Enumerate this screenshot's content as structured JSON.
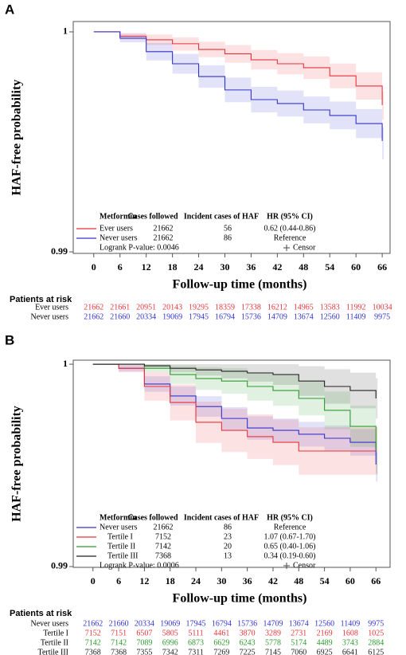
{
  "chart_data": [
    {
      "type": "line",
      "step": true,
      "panel": "A",
      "ylabel": "HAF-free probability",
      "xlabel": "Follow-up time (months)",
      "xlim": [
        -4.7,
        67.8
      ],
      "ylim": [
        0.98993,
        1.00047
      ],
      "xticks": [
        0,
        6,
        12,
        18,
        24,
        30,
        36,
        42,
        48,
        54,
        60,
        66
      ],
      "yticks": [
        0.99,
        1
      ],
      "x": [
        0,
        6,
        12,
        18,
        24,
        30,
        36,
        42,
        48,
        54,
        60,
        66
      ],
      "legend_header": [
        "Metformin",
        "Cases followed",
        "Incident cases of HAF",
        "HR (95% CI)"
      ],
      "logrank": "Logrank P-value: 0.0046",
      "censor_label": "Censor",
      "at_risk_title": "Patients at risk",
      "series": [
        {
          "name": "Ever users",
          "color": "#e8333a",
          "cases_followed": 21662,
          "incident_cases": 56,
          "hr": "0.62 (0.44-0.86)",
          "values": [
            1,
            0.9998,
            0.99964,
            0.99946,
            0.9992,
            0.999,
            0.99873,
            0.99855,
            0.99837,
            0.998,
            0.99754,
            0.99667
          ],
          "ci_upper": [
            1,
            0.99995,
            0.99988,
            0.99975,
            0.99955,
            0.9994,
            0.99917,
            0.99903,
            0.99888,
            0.99856,
            0.99816,
            0.99728
          ],
          "ci_lower": [
            1,
            0.99965,
            0.9994,
            0.99915,
            0.99885,
            0.9986,
            0.99829,
            0.99807,
            0.99786,
            0.99744,
            0.99692,
            0.99601
          ],
          "at_risk": [
            21662,
            21661,
            20951,
            20143,
            19295,
            18359,
            17338,
            16212,
            14965,
            13583,
            11992,
            10034
          ]
        },
        {
          "name": "Never users",
          "color": "#3333cc",
          "cases_followed": 21662,
          "incident_cases": 86,
          "hr": "Reference",
          "values": [
            1,
            0.99971,
            0.9991,
            0.99855,
            0.99797,
            0.99736,
            0.99692,
            0.99674,
            0.99645,
            0.9962,
            0.99583,
            0.99504
          ],
          "ci_upper": [
            1,
            0.9999,
            0.9995,
            0.999,
            0.99848,
            0.99792,
            0.9975,
            0.99733,
            0.99706,
            0.99683,
            0.99649,
            0.99565
          ],
          "ci_lower": [
            1,
            0.99952,
            0.9987,
            0.9981,
            0.99746,
            0.9968,
            0.99634,
            0.99615,
            0.99584,
            0.99557,
            0.99517,
            0.9942
          ],
          "at_risk": [
            21662,
            21660,
            20334,
            19069,
            17945,
            16794,
            15736,
            14709,
            13674,
            12560,
            11409,
            9975
          ]
        }
      ]
    },
    {
      "type": "line",
      "step": true,
      "panel": "B",
      "ylabel": "HAF-free probability",
      "xlabel": "Follow-up time (months)",
      "xlim": [
        -4.6,
        69.3
      ],
      "ylim": [
        0.98996,
        1.0002
      ],
      "xticks": [
        0,
        6,
        12,
        18,
        24,
        30,
        36,
        42,
        48,
        54,
        60,
        66
      ],
      "yticks": [
        0.99,
        1
      ],
      "x": [
        0,
        6,
        12,
        18,
        24,
        30,
        36,
        42,
        48,
        54,
        60,
        66
      ],
      "legend_header": [
        "Metformin",
        "Cases followed",
        "Incident cases of HAF",
        "HR (95% CI)"
      ],
      "logrank": "Logrank P-value: 0.0006",
      "censor_label": "Censor",
      "at_risk_title": "Patients at risk",
      "series": [
        {
          "name": "Never users",
          "color": "#3333cc",
          "cases_followed": 21662,
          "incident_cases": 86,
          "hr": "Reference",
          "values": [
            1,
            0.9998,
            0.99902,
            0.99843,
            0.99791,
            0.99732,
            0.99685,
            0.99673,
            0.99654,
            0.99634,
            0.99614,
            0.99504
          ],
          "ci_upper": [
            1,
            0.99995,
            0.9994,
            0.9989,
            0.99842,
            0.99788,
            0.99743,
            0.99732,
            0.99715,
            0.99697,
            0.9968,
            0.99565
          ],
          "ci_lower": [
            1,
            0.99965,
            0.99864,
            0.99796,
            0.9974,
            0.99676,
            0.99627,
            0.99614,
            0.99593,
            0.99571,
            0.99548,
            0.9942
          ],
          "at_risk": [
            21662,
            21660,
            20334,
            19069,
            17945,
            16794,
            15736,
            14709,
            13674,
            12560,
            11409,
            9975
          ]
        },
        {
          "name": "Tertile I",
          "color": "#e8333a",
          "cases_followed": 7152,
          "incident_cases": 23,
          "hr": "1.07 (0.67-1.70)",
          "values": [
            1,
            0.9998,
            0.9989,
            0.99811,
            0.99713,
            0.99673,
            0.99642,
            0.99614,
            0.99571,
            0.99571,
            0.99571,
            0.99571
          ],
          "ci_upper": [
            1,
            1,
            0.9996,
            0.999,
            0.99815,
            0.9978,
            0.99752,
            0.99726,
            0.99688,
            0.99688,
            0.99688,
            0.99688
          ],
          "ci_lower": [
            1,
            0.9996,
            0.9982,
            0.99722,
            0.99611,
            0.99566,
            0.99532,
            0.99502,
            0.99454,
            0.99454,
            0.99454,
            0.99454
          ],
          "at_risk": [
            7152,
            7151,
            6507,
            5805,
            5111,
            4461,
            3870,
            3289,
            2731,
            2169,
            1608,
            1025
          ]
        },
        {
          "name": "Tertile II",
          "color": "#2e9a2e",
          "cases_followed": 7142,
          "incident_cases": 20,
          "hr": "0.65 (0.40-1.06)",
          "values": [
            1,
            1,
            0.9998,
            0.99949,
            0.99929,
            0.99917,
            0.9989,
            0.9987,
            0.99831,
            0.99772,
            0.99693,
            0.99575
          ],
          "ci_upper": [
            1,
            1,
            1,
            0.99995,
            0.99985,
            0.9998,
            0.9996,
            0.99945,
            0.99915,
            0.99865,
            0.99795,
            0.9969
          ],
          "ci_lower": [
            1,
            1,
            0.9996,
            0.99903,
            0.99873,
            0.99854,
            0.9982,
            0.99795,
            0.99747,
            0.99679,
            0.99591,
            0.9946
          ],
          "at_risk": [
            7142,
            7142,
            7089,
            6996,
            6873,
            6629,
            6243,
            5778,
            5174,
            4489,
            3743,
            2884
          ]
        },
        {
          "name": "Tertile III",
          "color": "#222222",
          "cases_followed": 7368,
          "incident_cases": 13,
          "hr": "0.34 (0.19-0.60)",
          "values": [
            1,
            1,
            0.99992,
            0.9998,
            0.99972,
            0.99965,
            0.99957,
            0.99949,
            0.99917,
            0.9989,
            0.9987,
            0.99831
          ],
          "ci_upper": [
            1,
            1,
            1,
            1,
            1,
            1,
            1,
            1,
            0.9999,
            0.99975,
            0.99958,
            0.9993
          ],
          "ci_lower": [
            1,
            1,
            0.99984,
            0.9996,
            0.99944,
            0.9993,
            0.99914,
            0.99898,
            0.99844,
            0.99805,
            0.99782,
            0.99732
          ],
          "at_risk": [
            7368,
            7368,
            7355,
            7342,
            7311,
            7269,
            7225,
            7145,
            7060,
            6925,
            6641,
            6125
          ]
        }
      ]
    }
  ]
}
